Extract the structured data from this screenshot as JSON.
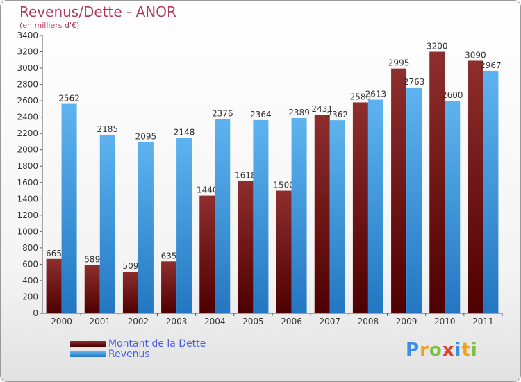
{
  "chart_data": {
    "type": "bar",
    "title": "Revenus/Dette - ANOR",
    "subtitle": "(en milliers d'€)",
    "categories": [
      "2000",
      "2001",
      "2002",
      "2003",
      "2004",
      "2005",
      "2006",
      "2007",
      "2008",
      "2009",
      "2010",
      "2011"
    ],
    "series": [
      {
        "name": "Montant de la Dette",
        "color": "#7a1a1a",
        "values": [
          665,
          589,
          509,
          635,
          1440,
          1618,
          1500,
          2431,
          2580,
          2995,
          3200,
          3090
        ]
      },
      {
        "name": "Revenus",
        "color": "#4a9fe0",
        "values": [
          2562,
          2185,
          2095,
          2148,
          2376,
          2364,
          2389,
          2362,
          2613,
          2763,
          2600,
          2967
        ]
      }
    ],
    "ylim": [
      0,
      3400
    ],
    "ytick_step": 200,
    "grid": false,
    "legend_position": "bottom-left"
  },
  "logo": {
    "letters": [
      "P",
      "r",
      "o",
      "x",
      "i",
      "t",
      "i"
    ],
    "colors": [
      "#3a8fe0",
      "#f0a020",
      "#7cc040",
      "#e04030",
      "#3a8fe0",
      "#f0a020",
      "#7cc040"
    ]
  }
}
